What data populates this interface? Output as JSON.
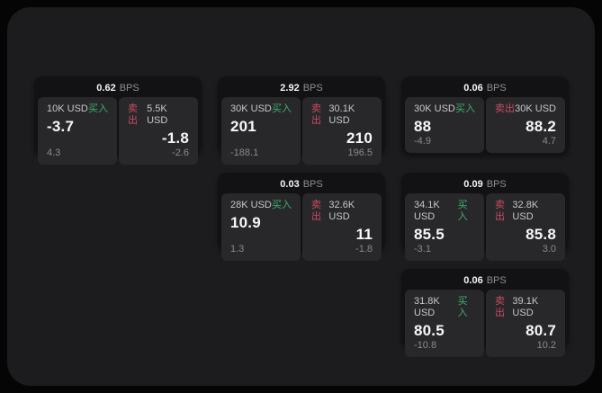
{
  "labels": {
    "bps_suffix": "BPS",
    "buy": "买入",
    "sell": "卖出"
  },
  "colors": {
    "background": "#050505",
    "panel": "#1c1c1e",
    "card": "#121214",
    "tile": "#28282b",
    "buy_accent": "#3fae6e",
    "sell_accent": "#c94b63",
    "value_text": "#f7f7f9",
    "muted_text": "#8a8a8e"
  },
  "cards": [
    {
      "bps": "0.62",
      "row": 1,
      "col": 1,
      "buy": {
        "size": "10K USD",
        "value": "-3.7",
        "delta": "4.3"
      },
      "sell": {
        "size": "5.5K USD",
        "value": "-1.8",
        "delta": "-2.6"
      }
    },
    {
      "bps": "2.92",
      "row": 1,
      "col": 2,
      "buy": {
        "size": "30K USD",
        "value": "201",
        "delta": "-188.1"
      },
      "sell": {
        "size": "30.1K USD",
        "value": "210",
        "delta": "196.5"
      }
    },
    {
      "bps": "0.06",
      "row": 1,
      "col": 3,
      "buy": {
        "size": "30K USD",
        "value": "88",
        "delta": "-4.9"
      },
      "sell": {
        "size": "30K USD",
        "value": "88.2",
        "delta": "4.7"
      }
    },
    {
      "bps": "0.03",
      "row": 2,
      "col": 2,
      "buy": {
        "size": "28K USD",
        "value": "10.9",
        "delta": "1.3"
      },
      "sell": {
        "size": "32.6K USD",
        "value": "11",
        "delta": "-1.8"
      }
    },
    {
      "bps": "0.09",
      "row": 2,
      "col": 3,
      "buy": {
        "size": "34.1K USD",
        "value": "85.5",
        "delta": "-3.1"
      },
      "sell": {
        "size": "32.8K USD",
        "value": "85.8",
        "delta": "3.0"
      }
    },
    {
      "bps": "0.06",
      "row": 3,
      "col": 3,
      "buy": {
        "size": "31.8K USD",
        "value": "80.5",
        "delta": "-10.8"
      },
      "sell": {
        "size": "39.1K USD",
        "value": "80.7",
        "delta": "10.2"
      }
    }
  ]
}
